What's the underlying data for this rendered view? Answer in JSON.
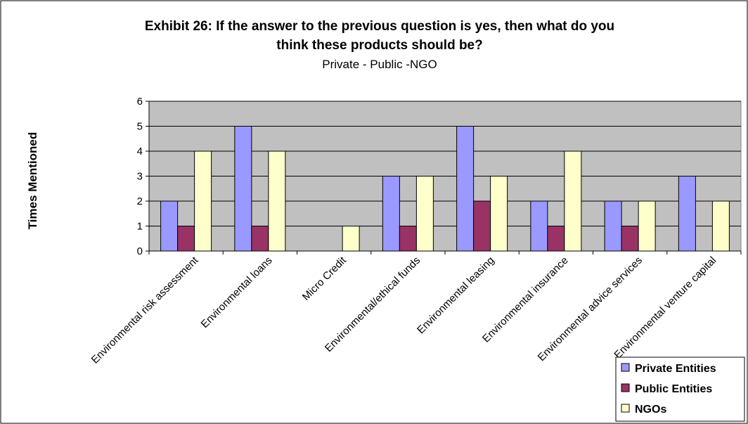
{
  "chart_data": {
    "type": "bar",
    "title_lines": [
      "Exhibit 26: If the answer to the previous question is yes, then what do you",
      "think these products should be?"
    ],
    "subtitle": "Private - Public -NGO",
    "xlabel": "",
    "ylabel": "Times Mentioned",
    "ylim": [
      0,
      6
    ],
    "yticks": [
      "0",
      "1",
      "2",
      "3",
      "4",
      "5",
      "6"
    ],
    "grid": true,
    "legend_position": "bottom-right",
    "categories": [
      "Environmental risk assessment",
      "Environmental loans",
      "Micro Credit",
      "Environmental/ethical funds",
      "Environmental leasing",
      "Environmental insurance",
      "Environmental advice services",
      "Environmental venture capital"
    ],
    "series": [
      {
        "name": "Private Entities",
        "color": "#9999ff",
        "values": [
          2,
          5,
          0,
          3,
          5,
          2,
          2,
          3
        ]
      },
      {
        "name": "Public Entities",
        "color": "#993366",
        "values": [
          1,
          1,
          0,
          1,
          2,
          1,
          1,
          0
        ]
      },
      {
        "name": "NGOs",
        "color": "#ffffcc",
        "values": [
          4,
          4,
          1,
          3,
          3,
          4,
          2,
          2
        ]
      }
    ],
    "plot_background": "#c0c0c0"
  }
}
